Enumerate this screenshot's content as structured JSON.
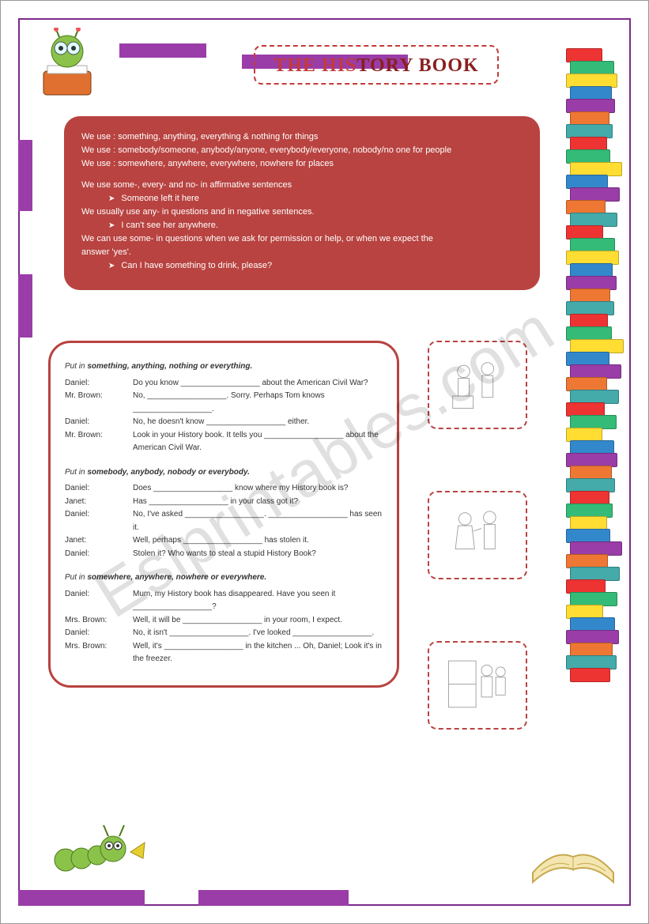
{
  "title": {
    "part1": "THE HIS",
    "part2": "TORY BOOK"
  },
  "rules": {
    "lines": [
      "We use : something, anything, everything & nothing for things",
      "We use : somebody/someone, anybody/anyone, everybody/everyone, nobody/no one for people",
      "We use : somewhere, anywhere, everywhere, nowhere for places",
      "",
      "We use some-, every- and no- in affirmative sentences"
    ],
    "ex1": "Someone left it here",
    "lines2": [
      "We usually use any- in questions and in negative sentences."
    ],
    "ex2": "I can't see her anywhere.",
    "lines3": [
      "We can use some- in questions when we ask for permission or help, or when we expect the",
      "answer 'yes'."
    ],
    "ex3": "Can I have something to drink, please?"
  },
  "sections": [
    {
      "title_prefix": "Put in ",
      "title_bold": "something, anything, nothing or everything.",
      "dialog": [
        {
          "speaker": "Daniel:",
          "text": "Do you know __________________ about the American Civil War?"
        },
        {
          "speaker": "Mr. Brown:",
          "text": "No, __________________.  Sorry.  Perhaps Tom knows __________________."
        },
        {
          "speaker": "Daniel:",
          "text": "No, he doesn't know __________________ either."
        },
        {
          "speaker": "Mr. Brown:",
          "text": "Look in your History book.  It tells you __________________ about the American Civil War."
        }
      ]
    },
    {
      "title_prefix": "Put in ",
      "title_bold": "somebody, anybody, nobody or everybody.",
      "dialog": [
        {
          "speaker": "Daniel:",
          "text": "Does __________________ know where my History book is?"
        },
        {
          "speaker": "Janet:",
          "text": "Has __________________ in your class got it?"
        },
        {
          "speaker": "Daniel:",
          "text": "No, I've asked __________________. __________________ has seen it."
        },
        {
          "speaker": "Janet:",
          "text": "Well, perhaps __________________ has stolen it."
        },
        {
          "speaker": "Daniel:",
          "text": "Stolen it?  Who wants to steal a stupid History Book?"
        }
      ]
    },
    {
      "title_prefix": "Put in ",
      "title_bold": "somewhere, anywhere, nowhere or everywhere.",
      "dialog": [
        {
          "speaker": "Daniel:",
          "text": "Mum, my History book has disappeared.  Have you seen it __________________?"
        },
        {
          "speaker": "Mrs. Brown:",
          "text": "Well, it will be __________________ in your room, I expect."
        },
        {
          "speaker": "Daniel:",
          "text": "No, it isn't __________________.  I've looked __________________."
        },
        {
          "speaker": "Mrs. Brown:",
          "text": "Well, it's __________________ in the kitchen ... Oh, Daniel;  Look it's in the freezer."
        }
      ]
    }
  ],
  "watermark": "Eslprintables.com",
  "colors": {
    "purple": "#9a3da8",
    "red": "#b84340",
    "title_red": "#c43a3a",
    "title_dark": "#8a1f1f"
  },
  "book_colors": [
    "#e33",
    "#3b7",
    "#fd3",
    "#38c",
    "#9a3da8",
    "#e73",
    "#4aa"
  ]
}
